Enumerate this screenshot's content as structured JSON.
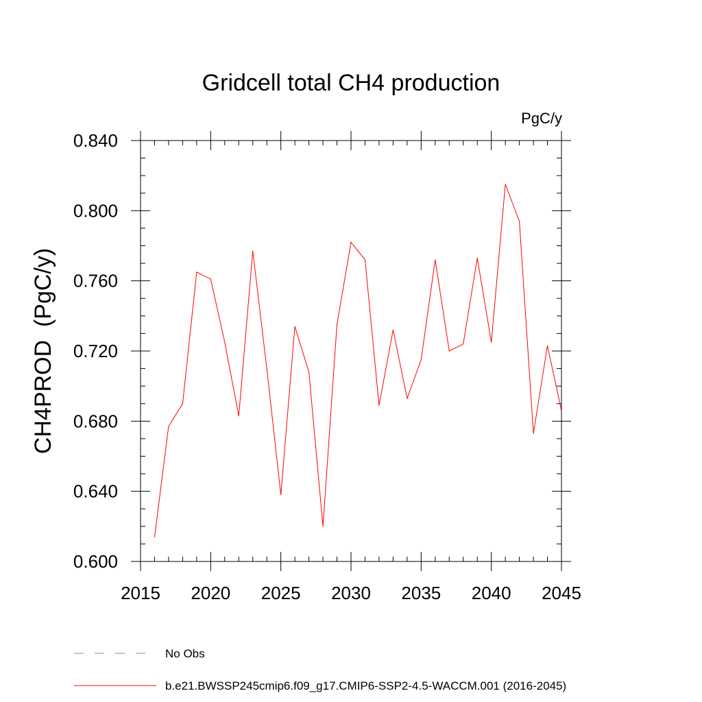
{
  "chart_data": {
    "type": "line",
    "title": "Gridcell total CH4 production",
    "units": "PgC/y",
    "ylabel": "CH4PROD  (PgC/y)",
    "xlabel": "",
    "xlim": [
      2015,
      2045
    ],
    "ylim": [
      0.6,
      0.84
    ],
    "x_ticks": [
      2015,
      2020,
      2025,
      2030,
      2035,
      2040,
      2045
    ],
    "x_tick_labels": [
      "2015",
      "2020",
      "2025",
      "2030",
      "2035",
      "2040",
      "2045"
    ],
    "y_ticks": [
      0.6,
      0.64,
      0.68,
      0.72,
      0.76,
      0.8,
      0.84
    ],
    "y_tick_labels": [
      "0.600",
      "0.640",
      "0.680",
      "0.720",
      "0.760",
      "0.800",
      "0.840"
    ],
    "x_minor_step": 1,
    "y_minor_step": 0.01,
    "grid": false,
    "legend_position": "bottom",
    "legend": [
      {
        "label": "No Obs",
        "color": "#8a7fc0",
        "dash": "dashed"
      },
      {
        "label": "b.e21.BWSSP245cmip6.f09_g17.CMIP6-SSP2-4.5-WACCM.001 (2016-2045)",
        "color": "#ff0000",
        "dash": "solid"
      }
    ],
    "series": [
      {
        "name": "b.e21.BWSSP245cmip6.f09_g17.CMIP6-SSP2-4.5-WACCM.001 (2016-2045)",
        "color": "#ff0000",
        "x": [
          2016,
          2017,
          2018,
          2019,
          2020,
          2021,
          2022,
          2023,
          2024,
          2025,
          2026,
          2027,
          2028,
          2029,
          2030,
          2031,
          2032,
          2033,
          2034,
          2035,
          2036,
          2037,
          2038,
          2039,
          2040,
          2041,
          2042,
          2043,
          2044,
          2045
        ],
        "values": [
          0.614,
          0.677,
          0.69,
          0.765,
          0.761,
          0.725,
          0.683,
          0.777,
          0.71,
          0.638,
          0.734,
          0.708,
          0.62,
          0.735,
          0.782,
          0.772,
          0.689,
          0.732,
          0.693,
          0.715,
          0.772,
          0.72,
          0.724,
          0.773,
          0.725,
          0.815,
          0.794,
          0.673,
          0.723,
          0.686
        ]
      }
    ]
  }
}
